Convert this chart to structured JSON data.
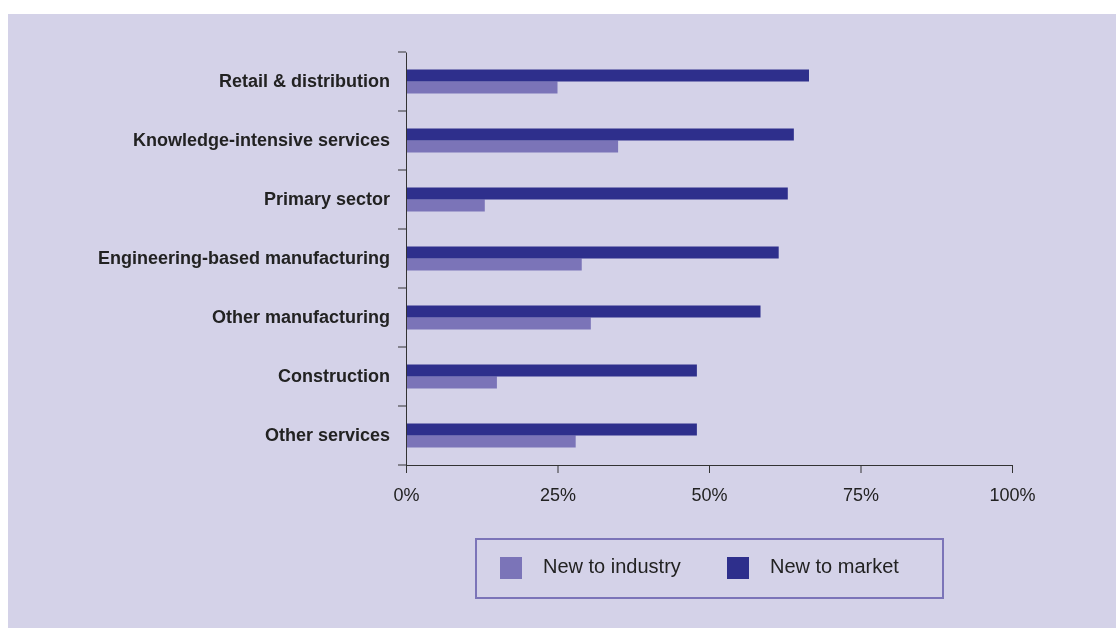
{
  "chart_data": {
    "type": "bar",
    "orientation": "horizontal",
    "categories": [
      "Retail & distribution",
      "Knowledge-intensive services",
      "Primary sector",
      "Engineering-based manufacturing",
      "Other manufacturing",
      "Construction",
      "Other services"
    ],
    "series": [
      {
        "name": "New to industry",
        "color": "#7b74b8",
        "values": [
          25,
          35,
          13,
          29,
          30.5,
          15,
          28
        ]
      },
      {
        "name": "New to market",
        "color": "#2e2f8c",
        "values": [
          66.5,
          64,
          63,
          61.5,
          58.5,
          48,
          48
        ]
      }
    ],
    "xlim": [
      0,
      100
    ],
    "xticks": [
      {
        "value": 0,
        "label": "0%"
      },
      {
        "value": 25,
        "label": "25%"
      },
      {
        "value": 50,
        "label": "50%"
      },
      {
        "value": 75,
        "label": "75%"
      },
      {
        "value": 100,
        "label": "100%"
      }
    ],
    "grid": false,
    "legend": "bottom"
  }
}
